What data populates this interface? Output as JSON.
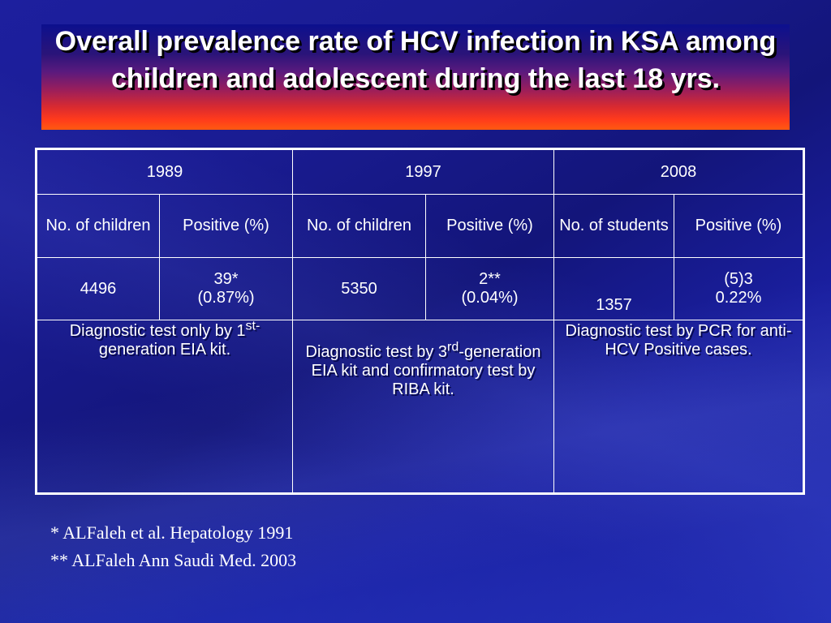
{
  "title": "Overall prevalence rate of HCV infection in KSA among children and adolescent during the last 18 yrs.",
  "table": {
    "years": [
      "1989",
      "1997",
      "2008"
    ],
    "headers": [
      "No. of children",
      "Positive (%)",
      "No. of children",
      "Positive (%)",
      "No. of students",
      "Positive (%)"
    ],
    "values": [
      {
        "line1": "4496",
        "line2": ""
      },
      {
        "line1": "39*",
        "line2": "(0.87%)"
      },
      {
        "line1": "5350",
        "line2": ""
      },
      {
        "line1": "2**",
        "line2": "(0.04%)"
      },
      {
        "line1": "1357",
        "line2": ""
      },
      {
        "line1": "(5)3",
        "line2": "0.22%"
      }
    ],
    "descriptions": {
      "d1989": {
        "pre": "Diagnostic test only by 1",
        "sup": "st-",
        "post": "generation EIA kit."
      },
      "d1997": {
        "pre": "Diagnostic test by 3",
        "sup": "rd",
        "post": "-generation EIA kit and confirmatory test by RIBA kit."
      },
      "d2008": "Diagnostic test by PCR for anti- HCV Positive cases."
    }
  },
  "footnotes": [
    "* ALFaleh et al. Hepatology 1991",
    "** ALFaleh Ann Saudi Med. 2003"
  ],
  "colors": {
    "header_text": "#ffff00",
    "description_text": "#4f8fff",
    "table_border": "#ffffff"
  }
}
